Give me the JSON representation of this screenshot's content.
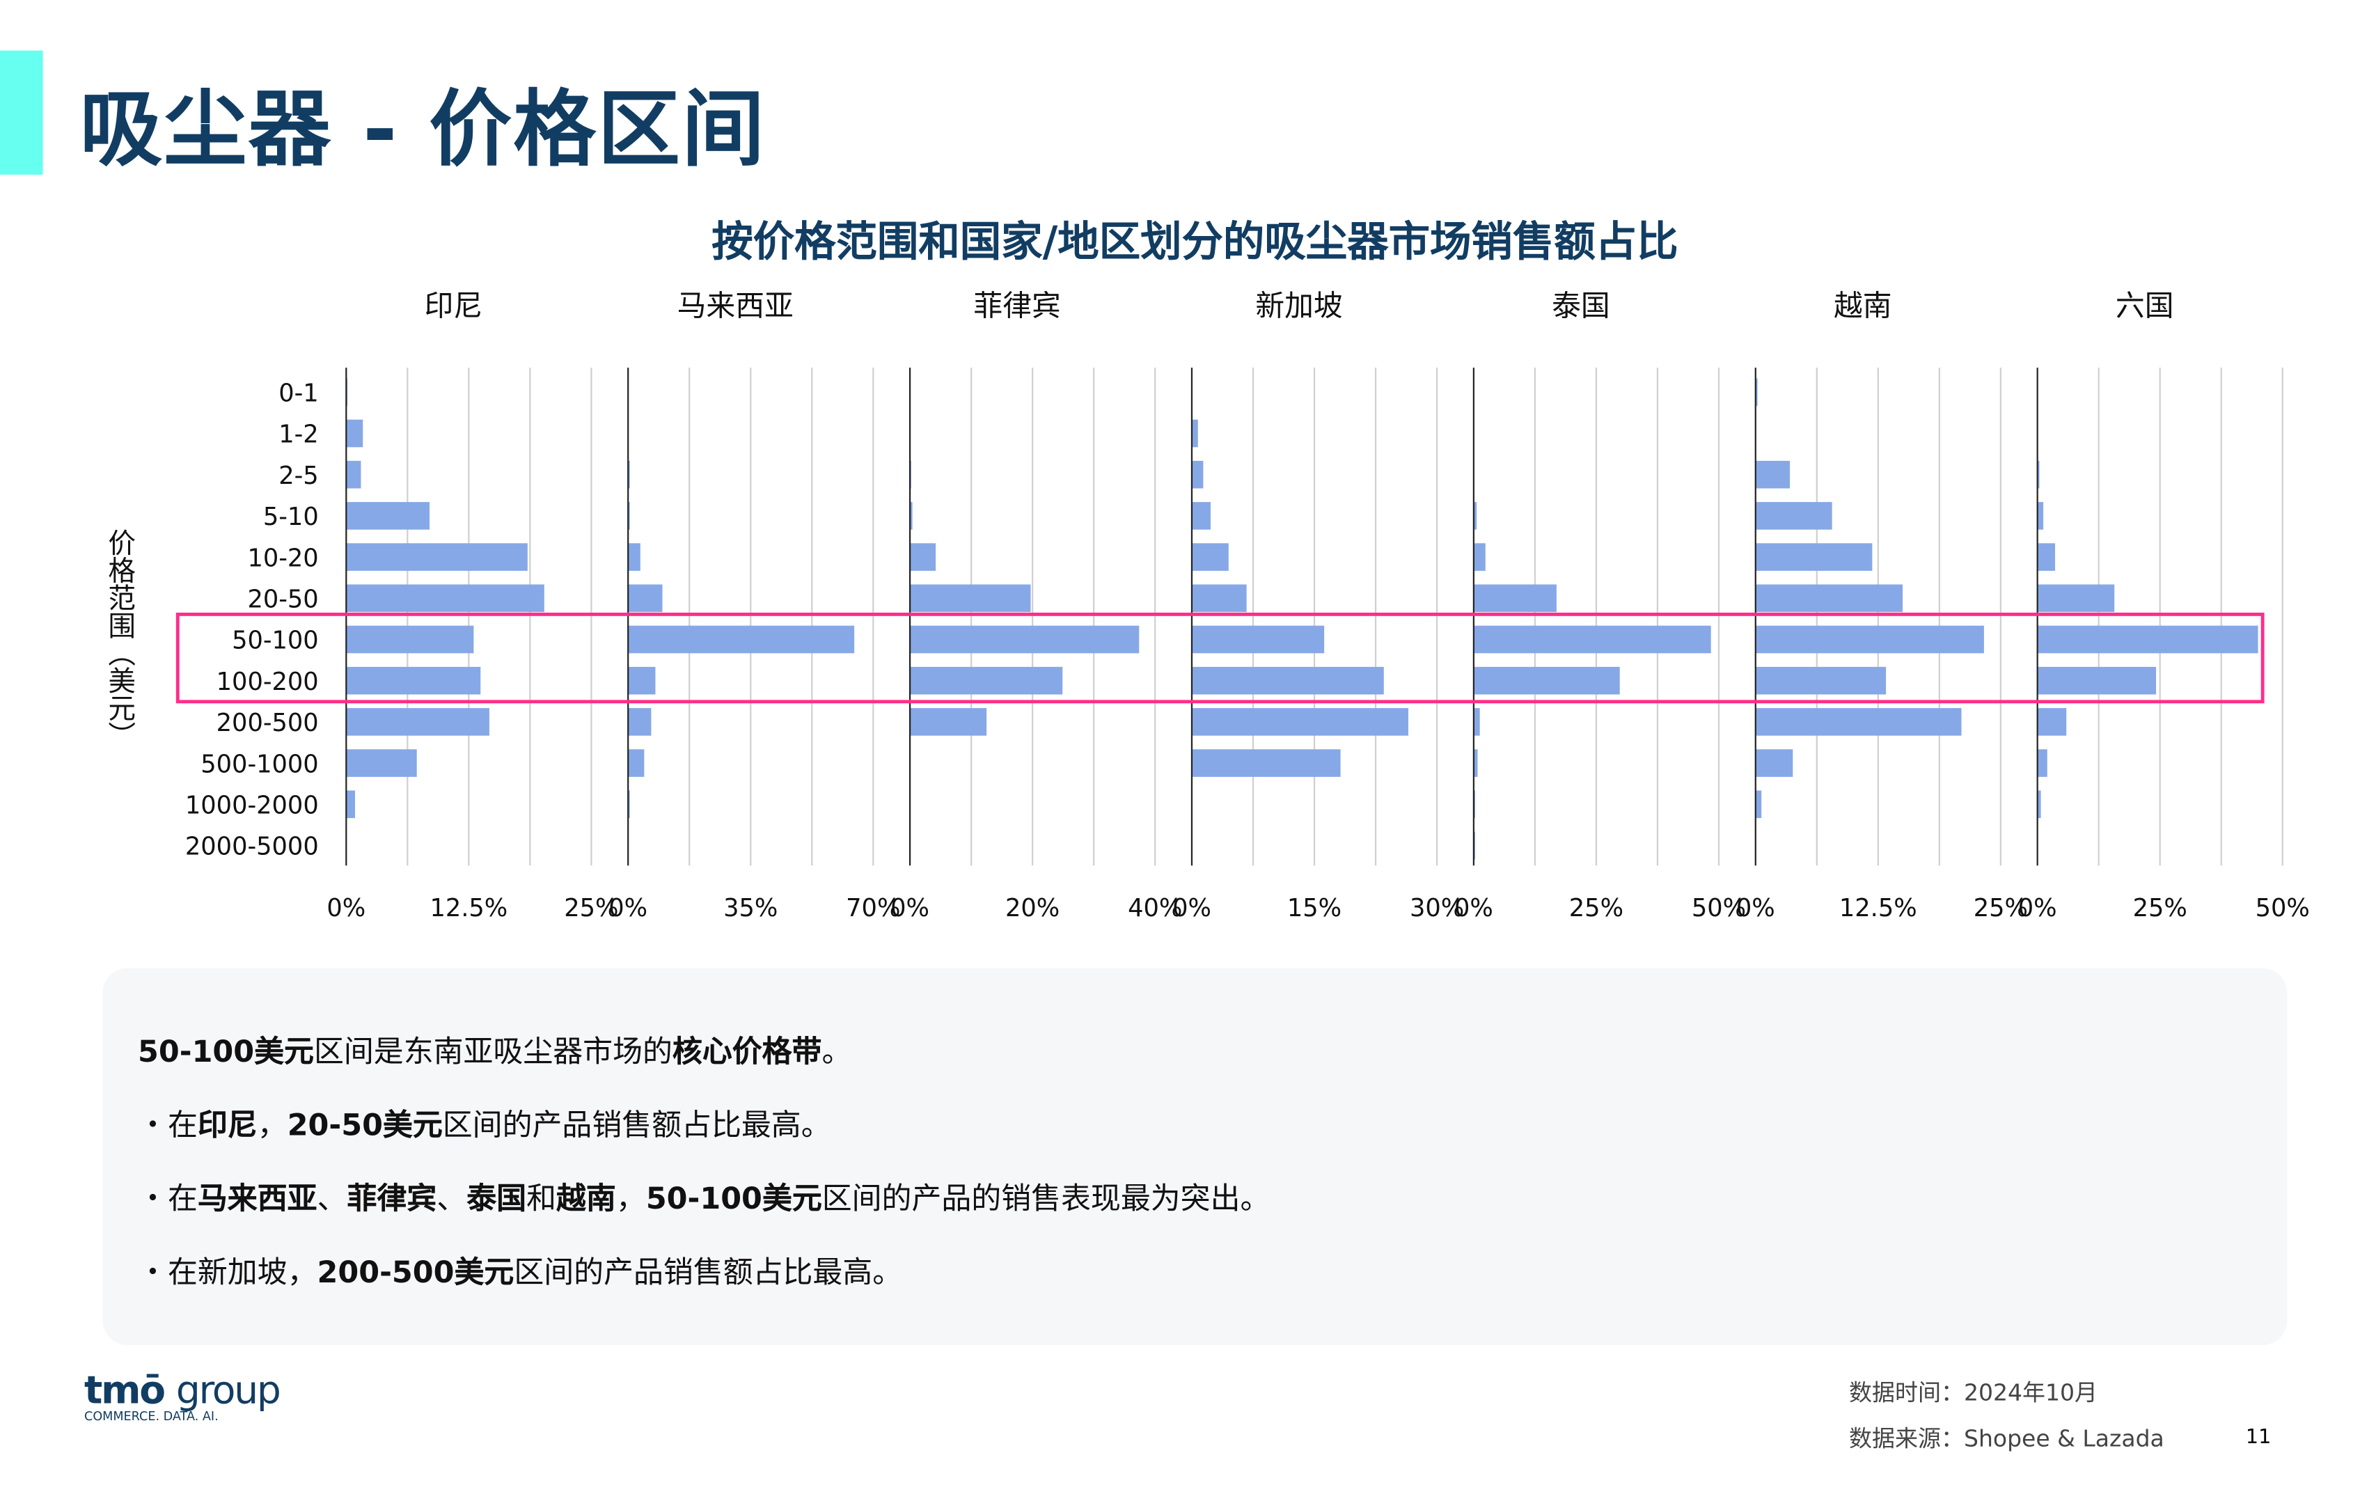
{
  "header": {
    "title": "吸尘器 - 价格区间",
    "accent_color": "#66fff0",
    "title_color": "#123d63"
  },
  "chart_data": {
    "type": "bar",
    "orientation": "horizontal",
    "layout": "small-multiples",
    "title": "按价格范围和国家/地区划分的吸尘器市场销售额占比",
    "ylabel": "价格范围（美元）",
    "categories": [
      "0-1",
      "1-2",
      "2-5",
      "5-10",
      "10-20",
      "20-50",
      "50-100",
      "100-200",
      "200-500",
      "500-1000",
      "1000-2000",
      "2000-5000"
    ],
    "unit": "%",
    "grid": true,
    "bar_color": "#87a8e6",
    "highlight": {
      "categories": [
        "50-100",
        "100-200"
      ],
      "color": "#ff2d8a"
    },
    "panels": [
      {
        "name": "印尼",
        "xlim": [
          0,
          25
        ],
        "ticks": [
          "0%",
          "12.5%",
          "25%"
        ],
        "values": [
          0.1,
          1.7,
          1.5,
          8.5,
          18.5,
          20.2,
          13.0,
          13.7,
          14.6,
          7.2,
          0.9,
          0
        ]
      },
      {
        "name": "马来西亚",
        "xlim": [
          0,
          70
        ],
        "ticks": [
          "0%",
          "35%",
          "70%"
        ],
        "values": [
          0,
          0,
          0.5,
          0.5,
          3.5,
          9.8,
          64.6,
          7.8,
          6.6,
          4.6,
          0.5,
          0
        ]
      },
      {
        "name": "菲律宾",
        "xlim": [
          0,
          40
        ],
        "ticks": [
          "0%",
          "20%",
          "40%"
        ],
        "values": [
          0,
          0,
          0.2,
          0.4,
          4.2,
          19.7,
          37.4,
          24.9,
          12.5,
          0,
          0,
          0
        ]
      },
      {
        "name": "新加坡",
        "xlim": [
          0,
          30
        ],
        "ticks": [
          "0%",
          "15%",
          "30%"
        ],
        "values": [
          0,
          0.75,
          1.4,
          2.3,
          4.5,
          6.7,
          16.2,
          23.5,
          26.5,
          18.2,
          0,
          0
        ]
      },
      {
        "name": "泰国",
        "xlim": [
          0,
          50
        ],
        "ticks": [
          "0%",
          "25%",
          "50%"
        ],
        "values": [
          0,
          0,
          0,
          0.6,
          2.4,
          16.9,
          48.4,
          29.8,
          1.25,
          0.8,
          0.3,
          0.3
        ]
      },
      {
        "name": "越南",
        "xlim": [
          0,
          25
        ],
        "ticks": [
          "0%",
          "12.5%",
          "25%"
        ],
        "values": [
          0.2,
          0,
          3.5,
          7.8,
          11.9,
          15.0,
          23.3,
          13.3,
          21.0,
          3.8,
          0.6,
          0
        ]
      },
      {
        "name": "六国",
        "xlim": [
          0,
          50
        ],
        "ticks": [
          "0%",
          "25%",
          "50%"
        ],
        "values": [
          0,
          0,
          0.4,
          1.2,
          3.6,
          15.7,
          45.0,
          24.2,
          5.9,
          2.0,
          0.7,
          0
        ]
      }
    ]
  },
  "notes": [
    [
      {
        "t": "50-100美元",
        "b": true
      },
      {
        "t": "区间是东南亚吸尘器市场的"
      },
      {
        "t": "核心价格带",
        "b": true
      },
      {
        "t": "。"
      }
    ],
    [
      {
        "t": "・在"
      },
      {
        "t": "印尼",
        "b": true
      },
      {
        "t": "，"
      },
      {
        "t": "20-50美元",
        "b": true
      },
      {
        "t": "区间的产品销售额占比最高。"
      }
    ],
    [
      {
        "t": "・在"
      },
      {
        "t": "马来西亚",
        "b": true
      },
      {
        "t": "、"
      },
      {
        "t": "菲律宾",
        "b": true
      },
      {
        "t": "、"
      },
      {
        "t": "泰国",
        "b": true
      },
      {
        "t": "和"
      },
      {
        "t": "越南",
        "b": true
      },
      {
        "t": "，"
      },
      {
        "t": "50-100美元",
        "b": true
      },
      {
        "t": "区间的产品的销售表现最为突出。"
      }
    ],
    [
      {
        "t": "・在新加坡，"
      },
      {
        "t": "200-500美元",
        "b": true
      },
      {
        "t": "区间的产品销售额占比最高。"
      }
    ]
  ],
  "footer": {
    "logo_text": "tmo group",
    "logo_tagline": "COMMERCE. DATA. AI.",
    "data_time": "数据时间：2024年10月",
    "data_source": "数据来源：Shopee & Lazada",
    "page_number": "11"
  }
}
